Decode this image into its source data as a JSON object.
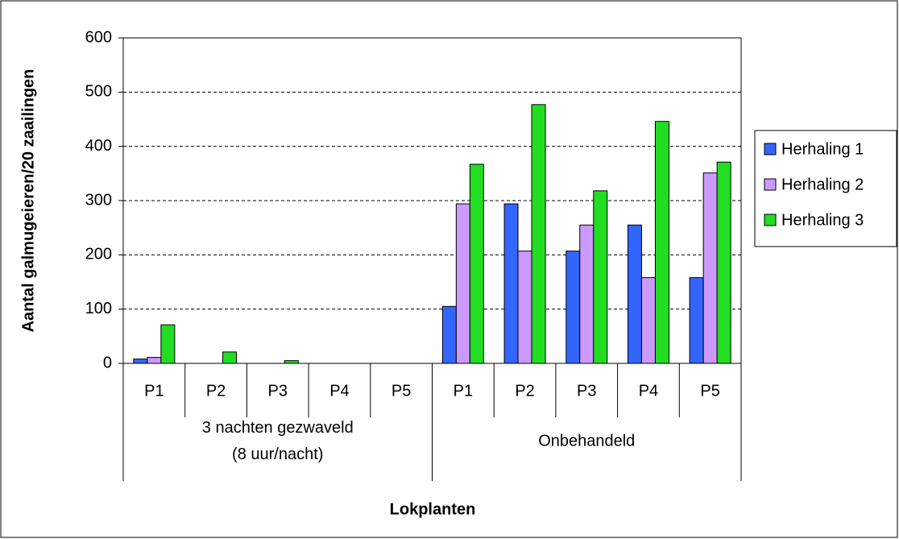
{
  "chart_data": {
    "type": "bar",
    "y_label": "Aantal galmugeieren/20 zaailingen",
    "x_label": "Lokplanten",
    "category_groups": [
      {
        "label": [
          "3 nachten gezwaveld",
          "(8 uur/nacht)"
        ],
        "categories": [
          "P1",
          "P2",
          "P3",
          "P4",
          "P5"
        ]
      },
      {
        "label": [
          "Onbehandeld"
        ],
        "categories": [
          "P1",
          "P2",
          "P3",
          "P4",
          "P5"
        ]
      }
    ],
    "series": [
      {
        "name": "Herhaling 1",
        "color": "#3366ff",
        "values": [
          8,
          0,
          0,
          0,
          0,
          105,
          294,
          207,
          255,
          158
        ]
      },
      {
        "name": "Herhaling 2",
        "color": "#cc99ff",
        "values": [
          11,
          0,
          0,
          0,
          0,
          294,
          207,
          255,
          158,
          351
        ]
      },
      {
        "name": "Herhaling 3",
        "color": "#22dd22",
        "values": [
          71,
          21,
          5,
          0,
          0,
          367,
          477,
          318,
          446,
          371
        ]
      }
    ],
    "ylim": [
      0,
      600
    ],
    "yticks": [
      0,
      100,
      200,
      300,
      400,
      500,
      600
    ],
    "grid": true,
    "legend": "right"
  }
}
